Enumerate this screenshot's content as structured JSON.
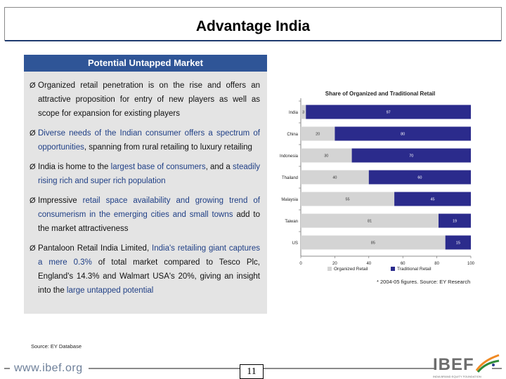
{
  "page": {
    "title": "Advantage India",
    "panel_header": "Potential Untapped Market",
    "bullets": [
      [
        {
          "t": "Organized retail penetration is on the rise and offers an attractive proposition for entry of new players as well as scope for expansion for existing players",
          "h": false
        }
      ],
      [
        {
          "t": "Diverse needs of the Indian consumer offers a spectrum of opportunities",
          "h": true
        },
        {
          "t": ", spanning from rural retailing to luxury retailing",
          "h": false
        }
      ],
      [
        {
          "t": "India is home to the ",
          "h": false
        },
        {
          "t": "largest base of consumers",
          "h": true
        },
        {
          "t": ", and a ",
          "h": false
        },
        {
          "t": "steadily rising rich and super rich population",
          "h": true
        }
      ],
      [
        {
          "t": "Impressive ",
          "h": false
        },
        {
          "t": "retail space availability and growing trend of consumerism in the emerging cities and small towns",
          "h": true
        },
        {
          "t": " add to the market attractiveness",
          "h": false
        }
      ],
      [
        {
          "t": "Pantaloon Retail India Limited, ",
          "h": false
        },
        {
          "t": "India's retailing giant captures a mere 0.3%",
          "h": true
        },
        {
          "t": " of total market compared to Tesco Plc, England's 14.3% and Walmart USA's 20%, giving an insight into the ",
          "h": false
        },
        {
          "t": "large untapped potential",
          "h": true
        }
      ]
    ],
    "bullet_mark": "Ø",
    "footnote": "* 2004-05 figures. Source: EY Research",
    "source": "Source: EY Database",
    "site": "www.ibef.org",
    "page_number": "11",
    "brand": "IBEF",
    "brand_tagline": "INDIA BRAND EQUITY FOUNDATION"
  },
  "colors": {
    "title_rule": "#1e3a6e",
    "panel_header": "#2f5597",
    "highlight": "#1f3f86",
    "organized": "#d4d4d4",
    "traditional": "#2b2b8c"
  },
  "chart_data": {
    "type": "bar",
    "orientation": "horizontal",
    "stacked": true,
    "title": "Share of Organized and Traditional Retail",
    "categories": [
      "India",
      "China",
      "Indonesia",
      "Thailand",
      "Malaysia",
      "Taiwan",
      "US"
    ],
    "series": [
      {
        "name": "Organized Retail",
        "values": [
          3,
          20,
          30,
          40,
          55,
          81,
          85
        ]
      },
      {
        "name": "Traditional Retail",
        "values": [
          97,
          80,
          70,
          60,
          45,
          19,
          15
        ]
      }
    ],
    "labels": [
      [
        "3",
        "97"
      ],
      [
        "20",
        "80"
      ],
      [
        "30",
        "70"
      ],
      [
        "40",
        "60"
      ],
      [
        "55",
        "45"
      ],
      [
        "81",
        "19"
      ],
      [
        "85",
        "15"
      ]
    ],
    "xticks": [
      "0",
      "20",
      "40",
      "60",
      "80",
      "100"
    ],
    "xlim": [
      0,
      100
    ],
    "legend": "bottom"
  }
}
